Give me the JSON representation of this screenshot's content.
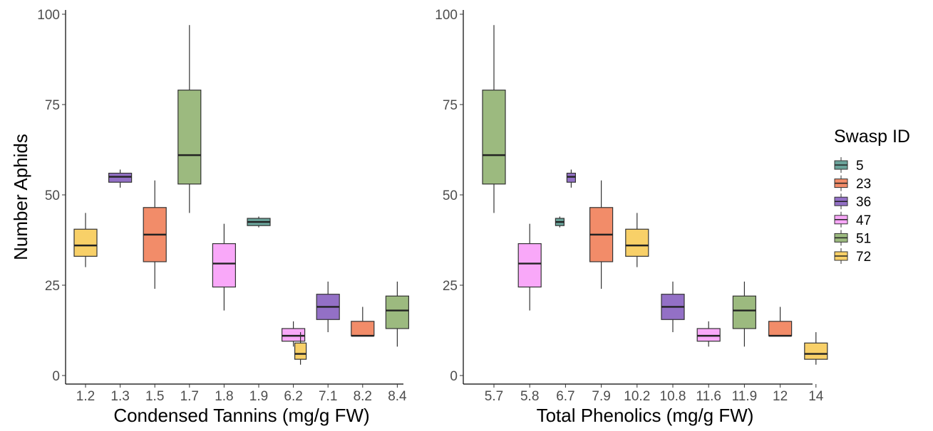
{
  "chart_data": [
    {
      "type": "box",
      "xlabel": "Condensed Tannins (mg/g FW)",
      "ylabel": "Number Aphids",
      "ylim": [
        0,
        100
      ],
      "yticks": [
        0,
        25,
        50,
        75,
        100
      ],
      "categories": [
        "1.2",
        "1.3",
        "1.5",
        "1.7",
        "1.8",
        "1.9",
        "6.2",
        "7.1",
        "8.2",
        "8.4"
      ],
      "boxes": [
        {
          "x": "1.2",
          "swasp": "72",
          "min": 30,
          "q1": 33,
          "median": 36,
          "q3": 40.5,
          "max": 45
        },
        {
          "x": "1.3",
          "swasp": "36",
          "min": 52,
          "q1": 53.5,
          "median": 55,
          "q3": 56,
          "max": 57
        },
        {
          "x": "1.5",
          "swasp": "23",
          "min": 24,
          "q1": 31.5,
          "median": 39,
          "q3": 46.5,
          "max": 54
        },
        {
          "x": "1.7",
          "swasp": "51",
          "min": 45,
          "q1": 53,
          "median": 61,
          "q3": 79,
          "max": 97
        },
        {
          "x": "1.8",
          "swasp": "47",
          "min": 18,
          "q1": 24.5,
          "median": 31,
          "q3": 36.5,
          "max": 42
        },
        {
          "x": "1.9",
          "swasp": "5",
          "min": 41,
          "q1": 41.5,
          "median": 42.5,
          "q3": 43.5,
          "max": 44
        },
        {
          "x": "6.2",
          "swasp": "47",
          "min": 8,
          "q1": 9.5,
          "median": 11,
          "q3": 13,
          "max": 15
        },
        {
          "x": "6.2",
          "swasp": "72",
          "min": 3,
          "q1": 4.5,
          "median": 6,
          "q3": 9,
          "max": 12,
          "dodge": "right"
        },
        {
          "x": "7.1",
          "swasp": "36",
          "min": 12,
          "q1": 15.5,
          "median": 19,
          "q3": 22.5,
          "max": 26
        },
        {
          "x": "8.2",
          "swasp": "23",
          "min": 11,
          "q1": 11,
          "median": 11,
          "q3": 15,
          "max": 19
        },
        {
          "x": "8.4",
          "swasp": "51",
          "min": 8,
          "q1": 13,
          "median": 18,
          "q3": 22,
          "max": 26
        }
      ]
    },
    {
      "type": "box",
      "xlabel": "Total Phenolics (mg/g FW)",
      "ylabel": "",
      "ylim": [
        0,
        100
      ],
      "yticks": [
        0,
        25,
        50,
        75,
        100
      ],
      "categories": [
        "5.7",
        "5.8",
        "6.7",
        "7.9",
        "10.2",
        "10.8",
        "11.6",
        "11.9",
        "12",
        "14"
      ],
      "boxes": [
        {
          "x": "5.7",
          "swasp": "51",
          "min": 45,
          "q1": 53,
          "median": 61,
          "q3": 79,
          "max": 97
        },
        {
          "x": "5.8",
          "swasp": "47",
          "min": 18,
          "q1": 24.5,
          "median": 31,
          "q3": 36.5,
          "max": 42
        },
        {
          "x": "6.7",
          "swasp": "5",
          "min": 41,
          "q1": 41.5,
          "median": 42.5,
          "q3": 43.5,
          "max": 44,
          "dodge": "left"
        },
        {
          "x": "6.7",
          "swasp": "36",
          "min": 52,
          "q1": 53.5,
          "median": 55,
          "q3": 56,
          "max": 57,
          "dodge": "right"
        },
        {
          "x": "7.9",
          "swasp": "23",
          "min": 24,
          "q1": 31.5,
          "median": 39,
          "q3": 46.5,
          "max": 54
        },
        {
          "x": "10.2",
          "swasp": "72",
          "min": 30,
          "q1": 33,
          "median": 36,
          "q3": 40.5,
          "max": 45
        },
        {
          "x": "10.8",
          "swasp": "36",
          "min": 12,
          "q1": 15.5,
          "median": 19,
          "q3": 22.5,
          "max": 26
        },
        {
          "x": "11.6",
          "swasp": "47",
          "min": 8,
          "q1": 9.5,
          "median": 11,
          "q3": 13,
          "max": 15
        },
        {
          "x": "11.9",
          "swasp": "51",
          "min": 8,
          "q1": 13,
          "median": 18,
          "q3": 22,
          "max": 26
        },
        {
          "x": "12",
          "swasp": "23",
          "min": 11,
          "q1": 11,
          "median": 11,
          "q3": 15,
          "max": 19
        },
        {
          "x": "14",
          "swasp": "72",
          "min": 3,
          "q1": 4.5,
          "median": 6,
          "q3": 9,
          "max": 12
        }
      ]
    }
  ],
  "legend": {
    "title": "Swasp ID",
    "placement": "right",
    "items": [
      {
        "label": "5",
        "color": "#6aa39a"
      },
      {
        "label": "23",
        "color": "#f28c69"
      },
      {
        "label": "36",
        "color": "#9370c6"
      },
      {
        "label": "47",
        "color": "#f9a8f9"
      },
      {
        "label": "51",
        "color": "#9cba7f"
      },
      {
        "label": "72",
        "color": "#f8d068"
      }
    ]
  }
}
